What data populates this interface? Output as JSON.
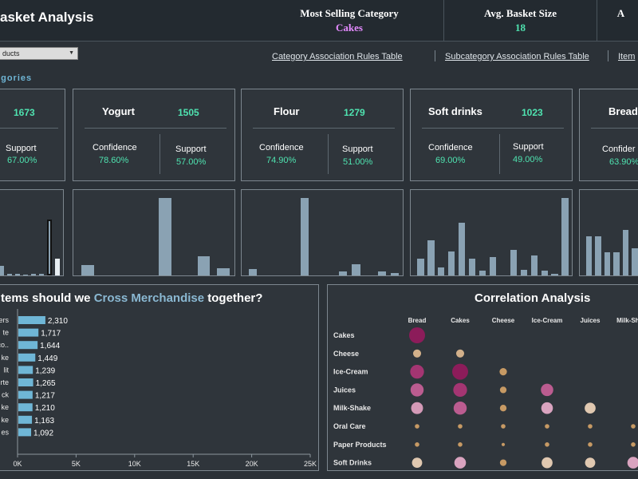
{
  "header": {
    "title": "asket Analysis",
    "kpis": [
      {
        "label": "Most Selling Category",
        "value": "Cakes",
        "color": "#e48bff"
      },
      {
        "label": "Avg. Basket Size",
        "value": "18",
        "color": "#4fe3b0"
      },
      {
        "label": "A",
        "value": "",
        "color": "#4fe3b0"
      }
    ]
  },
  "filter": {
    "value": "ducts"
  },
  "links": {
    "category_rules": "Category Association Rules Table",
    "subcategory_rules": "Subcategory Association Rules Table",
    "item": "Item"
  },
  "section_label": "egories",
  "cards": [
    {
      "name": "",
      "count": "1673",
      "left_label": "",
      "left_value": "",
      "right_label": "Support",
      "right_value": "67.00%"
    },
    {
      "name": "Yogurt",
      "count": "1505",
      "left_label": "Confidence",
      "left_value": "78.60%",
      "right_label": "Support",
      "right_value": "57.00%"
    },
    {
      "name": "Flour",
      "count": "1279",
      "left_label": "Confidence",
      "left_value": "74.90%",
      "right_label": "Support",
      "right_value": "51.00%"
    },
    {
      "name": "Soft drinks",
      "count": "1023",
      "left_label": "Confidence",
      "left_value": "69.00%",
      "right_label": "Support",
      "right_value": "49.00%"
    },
    {
      "name": "Bread",
      "count": "",
      "left_label": "Confider",
      "left_value": "63.90%",
      "right_label": "",
      "right_value": ""
    }
  ],
  "histograms": [
    {
      "values": [
        0.12,
        0.02,
        0.02,
        0.01,
        0.02,
        0.02,
        0.68,
        0.2
      ],
      "highlight_index": 6
    },
    {
      "values": [
        0.13,
        0,
        0,
        0,
        0.94,
        0,
        0.23,
        0.09
      ],
      "highlight_index": -1
    },
    {
      "values": [
        0.08,
        0,
        0,
        0,
        0.94,
        0,
        0,
        0.05,
        0.14,
        0,
        0.05,
        0.03
      ],
      "highlight_index": -1
    },
    {
      "values": [
        0.2,
        0.43,
        0.1,
        0.29,
        0.64,
        0.2,
        0.06,
        0.22,
        0,
        0.31,
        0.07,
        0.24,
        0.06,
        0.02,
        0.94
      ],
      "highlight_index": -1
    },
    {
      "values": [
        0.48,
        0.48,
        0.28,
        0.28,
        0.55,
        0.33,
        0.7
      ],
      "highlight_index": -1
    }
  ],
  "colors": {
    "bar": "#8aa2b3",
    "hbar": "#6fb6d6",
    "accent": "#8ab8d2",
    "count": "#4fe3b0"
  },
  "cross_panel": {
    "title_pre": "tems should we ",
    "title_accent": "Cross Merchandise",
    "title_post": " together?"
  },
  "correlation_panel": {
    "title": "Correlation Analysis"
  },
  "chart_data": [
    {
      "type": "bar",
      "orientation": "horizontal",
      "categories": [
        "ers",
        "te",
        "co..",
        "ke",
        "lit",
        "rte",
        "ck",
        "ke",
        "ke",
        "es"
      ],
      "values": [
        2310,
        1717,
        1644,
        1449,
        1239,
        1265,
        1217,
        1210,
        1163,
        1092
      ],
      "value_labels": [
        "2,310",
        "1,717",
        "1,644",
        "1,449",
        "1,239",
        "1,265",
        "1,217",
        "1,210",
        "1,163",
        "1,092"
      ],
      "xticks": [
        "0K",
        "5K",
        "10K",
        "15K",
        "20K",
        "25K"
      ],
      "xlim": [
        0,
        25000
      ]
    },
    {
      "type": "scatter",
      "x_categories": [
        "Bread",
        "Cakes",
        "Cheese",
        "Ice-Cream",
        "Juices",
        "Milk-Shake"
      ],
      "y_categories": [
        "Cakes",
        "Cheese",
        "Ice-Cream",
        "Juices",
        "Milk-Shake",
        "Oral Care",
        "Paper Products",
        "Soft Drinks"
      ],
      "points": [
        {
          "row": "Cakes",
          "col": "Bread",
          "value": 1.0,
          "color": "#8c1c5a"
        },
        {
          "row": "Cheese",
          "col": "Bread",
          "value": 0.45,
          "color": "#d2b08a"
        },
        {
          "row": "Cheese",
          "col": "Cakes",
          "value": 0.45,
          "color": "#d2b08a"
        },
        {
          "row": "Ice-Cream",
          "col": "Bread",
          "value": 0.85,
          "color": "#a43572"
        },
        {
          "row": "Ice-Cream",
          "col": "Cakes",
          "value": 1.0,
          "color": "#8c1c5a"
        },
        {
          "row": "Ice-Cream",
          "col": "Cheese",
          "value": 0.4,
          "color": "#c79a64"
        },
        {
          "row": "Juices",
          "col": "Bread",
          "value": 0.8,
          "color": "#bb5c90"
        },
        {
          "row": "Juices",
          "col": "Cakes",
          "value": 0.85,
          "color": "#a43572"
        },
        {
          "row": "Juices",
          "col": "Cheese",
          "value": 0.35,
          "color": "#c79a64"
        },
        {
          "row": "Juices",
          "col": "Ice-Cream",
          "value": 0.75,
          "color": "#bb5c90"
        },
        {
          "row": "Milk-Shake",
          "col": "Bread",
          "value": 0.72,
          "color": "#d49ab7"
        },
        {
          "row": "Milk-Shake",
          "col": "Cakes",
          "value": 0.8,
          "color": "#bb5c90"
        },
        {
          "row": "Milk-Shake",
          "col": "Cheese",
          "value": 0.35,
          "color": "#c79a64"
        },
        {
          "row": "Milk-Shake",
          "col": "Ice-Cream",
          "value": 0.7,
          "color": "#d9a3bf"
        },
        {
          "row": "Milk-Shake",
          "col": "Juices",
          "value": 0.65,
          "color": "#e0c8b0"
        },
        {
          "row": "Oral Care",
          "col": "Bread",
          "value": 0.2,
          "color": "#c79a64"
        },
        {
          "row": "Oral Care",
          "col": "Cakes",
          "value": 0.2,
          "color": "#c79a64"
        },
        {
          "row": "Oral Care",
          "col": "Cheese",
          "value": 0.2,
          "color": "#c79a64"
        },
        {
          "row": "Oral Care",
          "col": "Ice-Cream",
          "value": 0.2,
          "color": "#c79a64"
        },
        {
          "row": "Oral Care",
          "col": "Juices",
          "value": 0.2,
          "color": "#c79a64"
        },
        {
          "row": "Oral Care",
          "col": "Milk-Shake",
          "value": 0.2,
          "color": "#c79a64"
        },
        {
          "row": "Paper Products",
          "col": "Bread",
          "value": 0.2,
          "color": "#c79a64"
        },
        {
          "row": "Paper Products",
          "col": "Cakes",
          "value": 0.2,
          "color": "#c79a64"
        },
        {
          "row": "Paper Products",
          "col": "Cheese",
          "value": 0.12,
          "color": "#c79a64"
        },
        {
          "row": "Paper Products",
          "col": "Ice-Cream",
          "value": 0.2,
          "color": "#c79a64"
        },
        {
          "row": "Paper Products",
          "col": "Juices",
          "value": 0.2,
          "color": "#c79a64"
        },
        {
          "row": "Paper Products",
          "col": "Milk-Shake",
          "value": 0.2,
          "color": "#c79a64"
        },
        {
          "row": "Soft Drinks",
          "col": "Bread",
          "value": 0.6,
          "color": "#e0c8b0"
        },
        {
          "row": "Soft Drinks",
          "col": "Cakes",
          "value": 0.7,
          "color": "#d9a3bf"
        },
        {
          "row": "Soft Drinks",
          "col": "Cheese",
          "value": 0.35,
          "color": "#c79a64"
        },
        {
          "row": "Soft Drinks",
          "col": "Ice-Cream",
          "value": 0.65,
          "color": "#e0c8b0"
        },
        {
          "row": "Soft Drinks",
          "col": "Juices",
          "value": 0.6,
          "color": "#e0c8b0"
        },
        {
          "row": "Soft Drinks",
          "col": "Milk-Shake",
          "value": 0.7,
          "color": "#d9a3bf"
        }
      ]
    }
  ]
}
